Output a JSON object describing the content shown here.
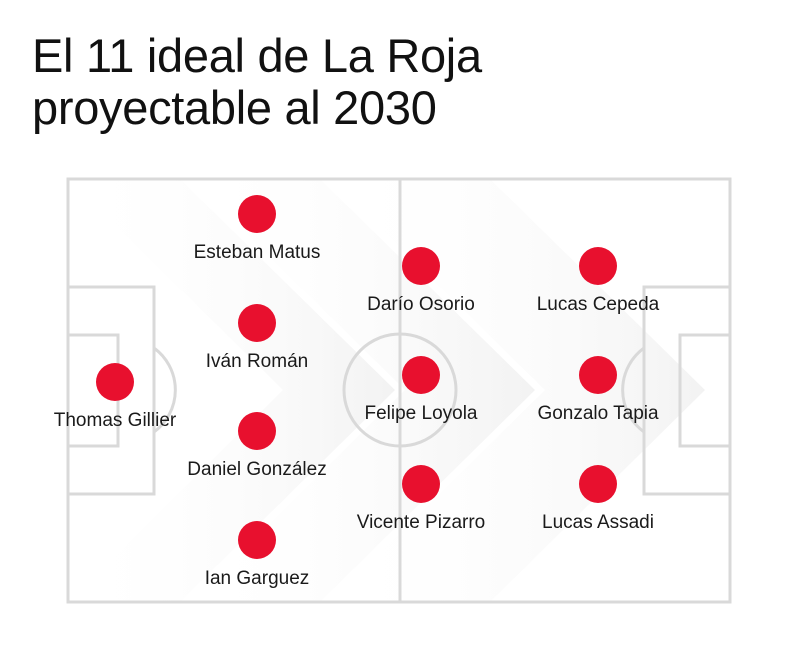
{
  "title": {
    "line1": "El 11 ideal de La Roja",
    "line2": "proyectable al 2030"
  },
  "colors": {
    "player_dot": "#e8102e",
    "pitch_lines": "#d9d9d9",
    "arrow_shade": "#f2f2f2",
    "text": "#111111"
  },
  "players": [
    {
      "name": "Thomas Gillier",
      "role": "goalkeeper"
    },
    {
      "name": "Esteban Matus",
      "role": "defender"
    },
    {
      "name": "Iván Román",
      "role": "defender"
    },
    {
      "name": "Daniel González",
      "role": "defender"
    },
    {
      "name": "Ian Garguez",
      "role": "defender"
    },
    {
      "name": "Darío Osorio",
      "role": "midfielder"
    },
    {
      "name": "Felipe Loyola",
      "role": "midfielder"
    },
    {
      "name": "Vicente Pizarro",
      "role": "midfielder"
    },
    {
      "name": "Lucas Cepeda",
      "role": "forward"
    },
    {
      "name": "Gonzalo Tapia",
      "role": "forward"
    },
    {
      "name": "Lucas Assadi",
      "role": "forward"
    }
  ]
}
